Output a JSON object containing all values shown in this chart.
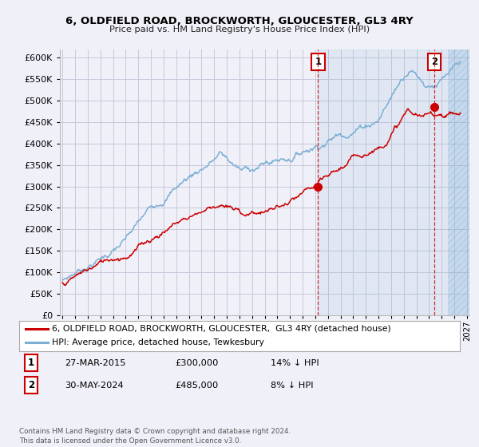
{
  "title": "6, OLDFIELD ROAD, BROCKWORTH, GLOUCESTER, GL3 4RY",
  "subtitle": "Price paid vs. HM Land Registry's House Price Index (HPI)",
  "legend_line1": "6, OLDFIELD ROAD, BROCKWORTH, GLOUCESTER,  GL3 4RY (detached house)",
  "legend_line2": "HPI: Average price, detached house, Tewkesbury",
  "annotation1_date": "27-MAR-2015",
  "annotation1_price": "£300,000",
  "annotation1_hpi": "14% ↓ HPI",
  "annotation2_date": "30-MAY-2024",
  "annotation2_price": "£485,000",
  "annotation2_hpi": "8% ↓ HPI",
  "footer": "Contains HM Land Registry data © Crown copyright and database right 2024.\nThis data is licensed under the Open Government Licence v3.0.",
  "hpi_color": "#7bafd4",
  "price_color": "#cc0000",
  "annotation_color": "#cc0000",
  "background_color": "#f0f0f8",
  "plot_bg_color": "#f0f0f8",
  "grid_color": "#c8c8dc",
  "ylim": [
    0,
    620000
  ],
  "yticks": [
    0,
    50000,
    100000,
    150000,
    200000,
    250000,
    300000,
    350000,
    400000,
    450000,
    500000,
    550000,
    600000
  ],
  "ytick_labels": [
    "£0",
    "£50K",
    "£100K",
    "£150K",
    "£200K",
    "£250K",
    "£300K",
    "£350K",
    "£400K",
    "£450K",
    "£500K",
    "£550K",
    "£600K"
  ],
  "transaction1_x": 2015.22,
  "transaction1_y": 300000,
  "transaction2_x": 2024.42,
  "transaction2_y": 485000,
  "xlim_left": 1994.8,
  "xlim_right": 2027.2
}
